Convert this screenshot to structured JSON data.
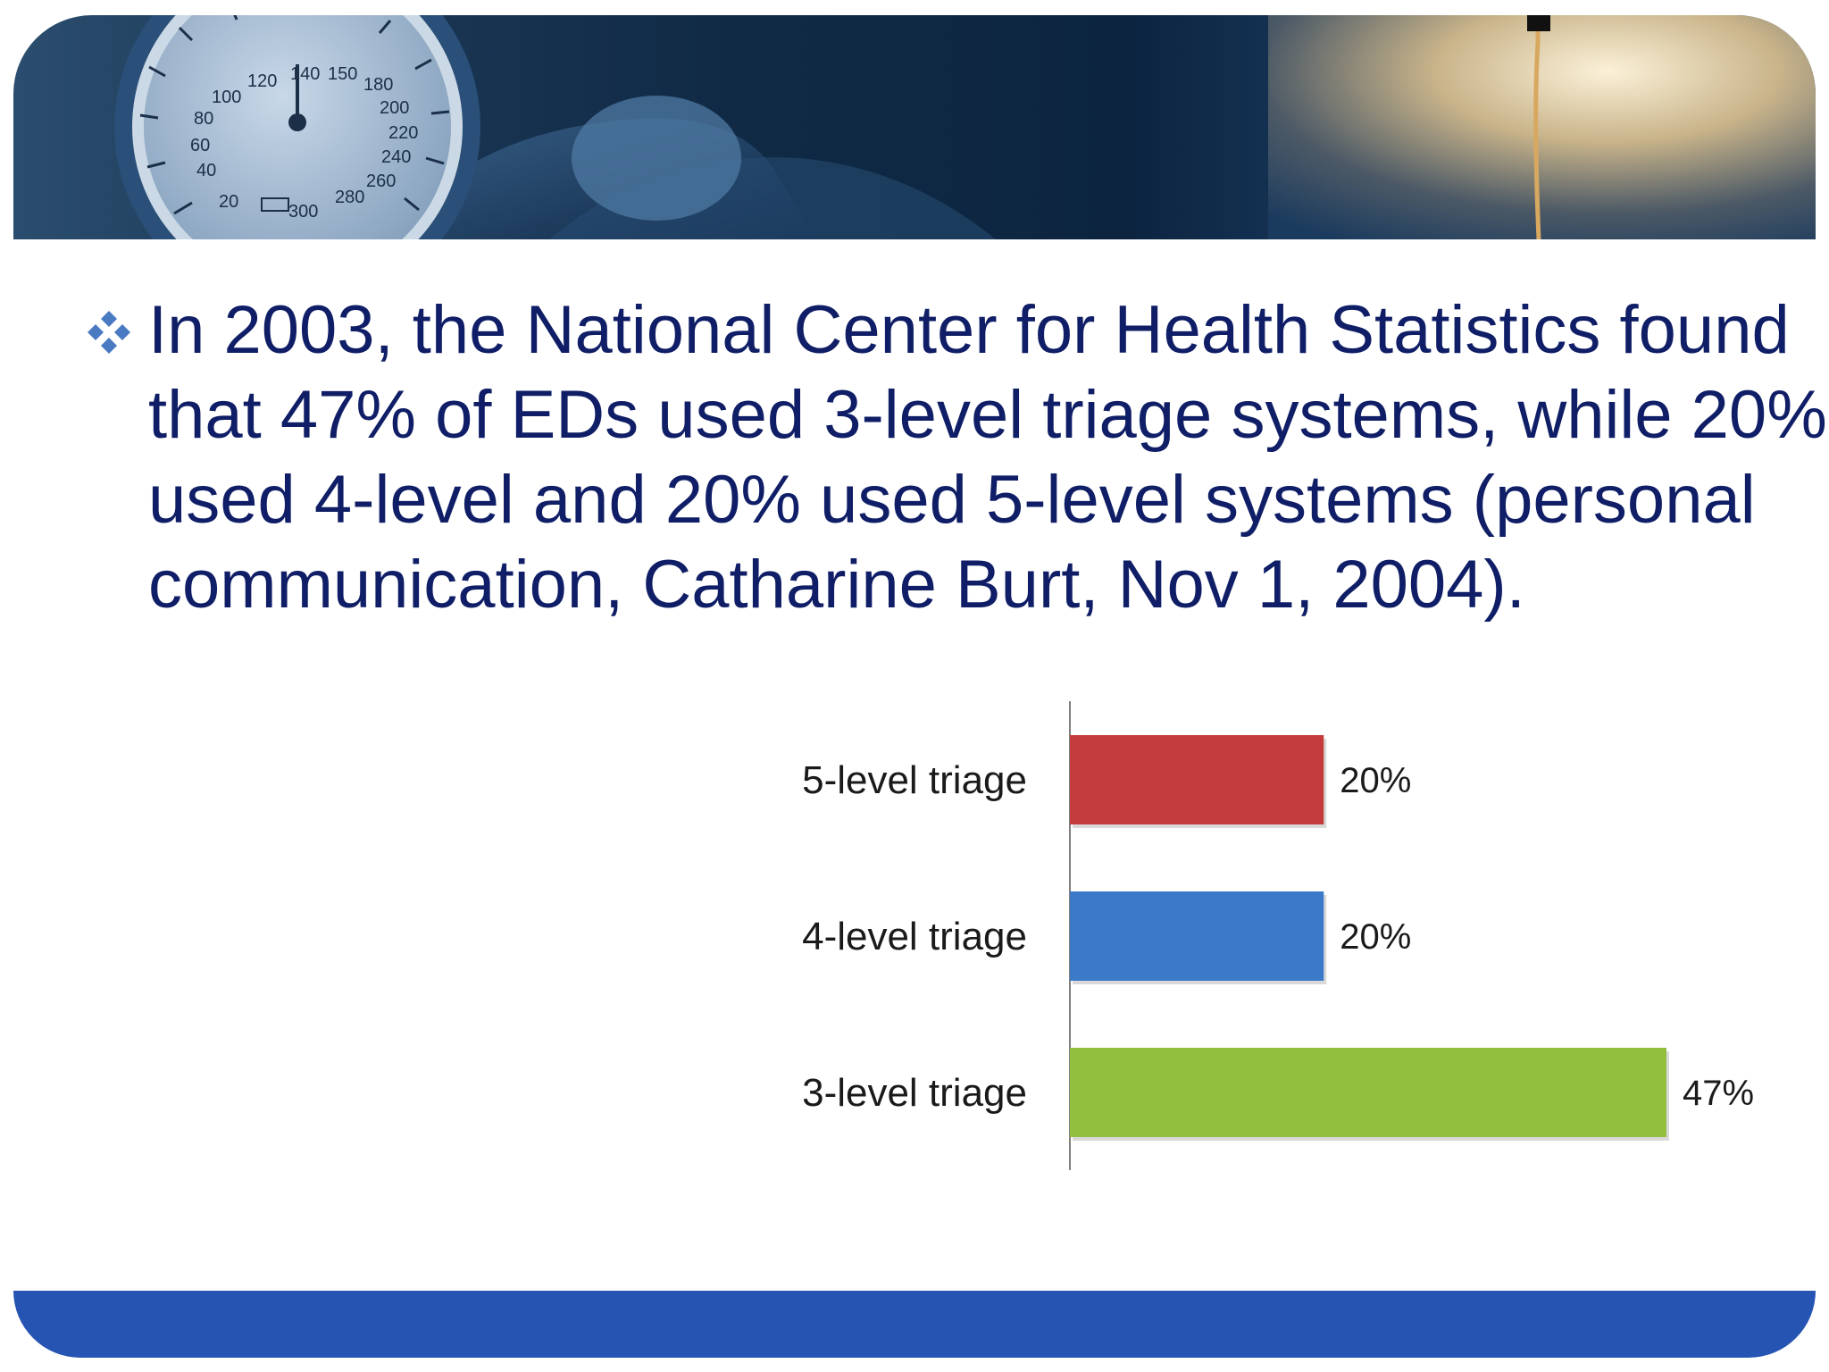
{
  "slide": {
    "bullet_text": "In 2003, the National Center for Health Statistics found that 47% of EDs used 3-level triage systems, while 20% used 4-level and 20% used 5-level systems (personal communication, Catharine Burt, Nov 1, 2004).",
    "gauge_ticks": [
      "20",
      "40",
      "60",
      "80",
      "100",
      "120",
      "140",
      "150",
      "180",
      "200",
      "220",
      "240",
      "260",
      "280",
      "300"
    ]
  },
  "colors": {
    "text": "#0f1e66",
    "bullet": "#4a7ac2",
    "footer": "#2654b3",
    "axis": "#808080"
  },
  "chart_data": {
    "type": "bar",
    "orientation": "horizontal",
    "categories": [
      "5-level triage",
      "4-level triage",
      "3-level triage"
    ],
    "values": [
      20,
      20,
      47
    ],
    "value_labels": [
      "20%",
      "20%",
      "47%"
    ],
    "colors": [
      "#c33b3a",
      "#3a7ac9",
      "#93bf3e"
    ],
    "xlim": [
      0,
      47
    ],
    "grid": false,
    "legend": "none",
    "title": "",
    "xlabel": "",
    "ylabel": ""
  }
}
